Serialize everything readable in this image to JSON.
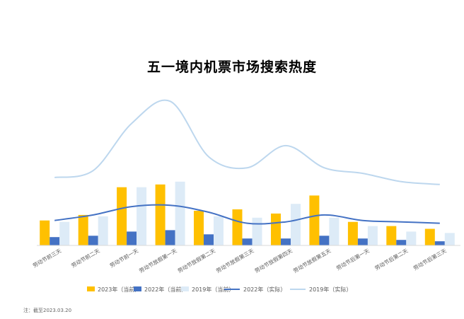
{
  "chart_data": {
    "type": "bar",
    "title": "五一境内机票市场搜索热度",
    "xlabel": "",
    "ylabel": "",
    "categories": [
      "劳动节前三天",
      "劳动节前二天",
      "劳动节前一天",
      "劳动节放假第一天",
      "劳动节放假第二天",
      "劳动节放假第三天",
      "劳动节放假第四天",
      "劳动节放假第五天",
      "劳动节后第一天",
      "劳动节后第二天",
      "劳动节后第三天"
    ],
    "ylim": [
      0,
      100
    ],
    "grid": false,
    "legend_position": "bottom",
    "bar_series": [
      {
        "name": "2023年（当前）",
        "color": "#FFC000",
        "values": [
          18,
          22,
          42,
          44,
          25,
          26,
          23,
          36,
          17,
          14,
          12
        ]
      },
      {
        "name": "2022年（当前）",
        "color": "#4472C4",
        "values": [
          6,
          7,
          10,
          11,
          8,
          5,
          5,
          7,
          5,
          4,
          3
        ]
      },
      {
        "name": "2019年（当前）",
        "color": "#DDEBF7",
        "values": [
          17,
          21,
          42,
          46,
          21,
          20,
          30,
          20,
          14,
          10,
          9
        ]
      }
    ],
    "line_series": [
      {
        "name": "2022年（实际）",
        "color": "#4472C4",
        "values": [
          18,
          22,
          28,
          29,
          24,
          16,
          17,
          22,
          18,
          17,
          16
        ]
      },
      {
        "name": "2019年（实际）",
        "color": "#BDD7EE",
        "values": [
          49,
          54,
          88,
          104,
          64,
          56,
          72,
          56,
          52,
          46,
          44
        ]
      }
    ]
  },
  "legend": {
    "items": [
      {
        "label": "2023年（当前）",
        "kind": "bar",
        "color": "#FFC000"
      },
      {
        "label": "2022年（当前）",
        "kind": "bar",
        "color": "#4472C4"
      },
      {
        "label": "2019年（当前）",
        "kind": "bar",
        "color": "#DDEBF7"
      },
      {
        "label": "2022年（实际）",
        "kind": "line",
        "color": "#4472C4"
      },
      {
        "label": "2019年（实际）",
        "kind": "line",
        "color": "#BDD7EE"
      }
    ]
  },
  "note": "注：截至2023.03.20"
}
